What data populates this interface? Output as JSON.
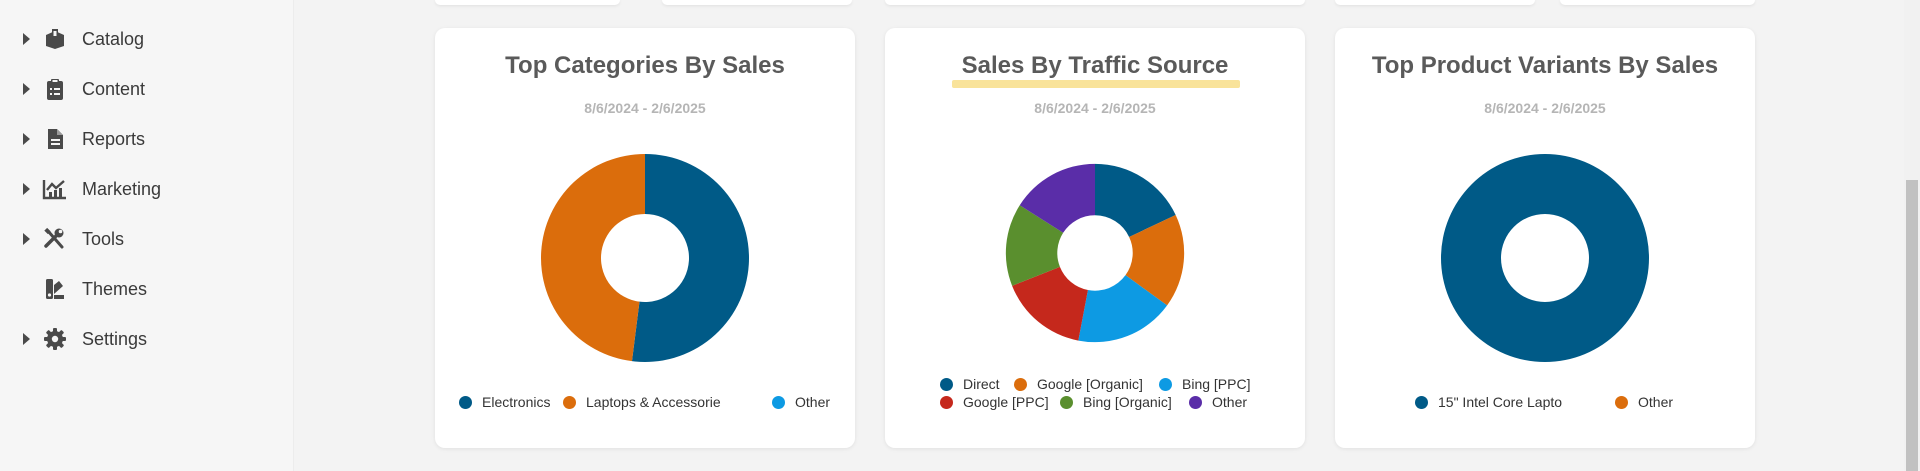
{
  "sidebar": {
    "items": [
      {
        "label": "Catalog",
        "icon": "box-icon",
        "arrow": true
      },
      {
        "label": "Content",
        "icon": "clipboard-icon",
        "arrow": true
      },
      {
        "label": "Reports",
        "icon": "document-icon",
        "arrow": true
      },
      {
        "label": "Marketing",
        "icon": "chart-line-icon",
        "arrow": true
      },
      {
        "label": "Tools",
        "icon": "tools-icon",
        "arrow": true
      },
      {
        "label": "Themes",
        "icon": "swatch-icon",
        "arrow": false
      },
      {
        "label": "Settings",
        "icon": "gear-icon",
        "arrow": true
      }
    ]
  },
  "colors": {
    "blue": "#005a87",
    "orange": "#db6d0c",
    "sky": "#0d9ae3",
    "red": "#c5281c",
    "green": "#5a8f2e",
    "purple": "#5a2da8",
    "highlight": "#f9e39a"
  },
  "cards": [
    {
      "title": "Top Categories By Sales",
      "date": "8/6/2024 - 2/6/2025",
      "highlighted": false,
      "chart_data": {
        "type": "pie",
        "donut": true,
        "labels": [
          "Electronics",
          "Laptops & Accessorie",
          "Other"
        ],
        "values": [
          52,
          48,
          0
        ],
        "colors": [
          "#005a87",
          "#db6d0c",
          "#0d9ae3"
        ]
      }
    },
    {
      "title": "Sales By Traffic Source",
      "date": "8/6/2024 - 2/6/2025",
      "highlighted": true,
      "chart_data": {
        "type": "pie",
        "donut": true,
        "labels": [
          "Direct",
          "Google [Organic]",
          "Bing [PPC]",
          "Google [PPC]",
          "Bing [Organic]",
          "Other"
        ],
        "values": [
          18,
          17,
          18,
          16,
          15,
          16
        ],
        "colors": [
          "#005a87",
          "#db6d0c",
          "#0d9ae3",
          "#c5281c",
          "#5a8f2e",
          "#5a2da8"
        ]
      }
    },
    {
      "title": "Top Product Variants By Sales",
      "date": "8/6/2024 - 2/6/2025",
      "highlighted": false,
      "chart_data": {
        "type": "pie",
        "donut": true,
        "labels": [
          "15\" Intel Core Lapto",
          "Other"
        ],
        "values": [
          100,
          0
        ],
        "colors": [
          "#005a87",
          "#db6d0c"
        ]
      }
    }
  ]
}
